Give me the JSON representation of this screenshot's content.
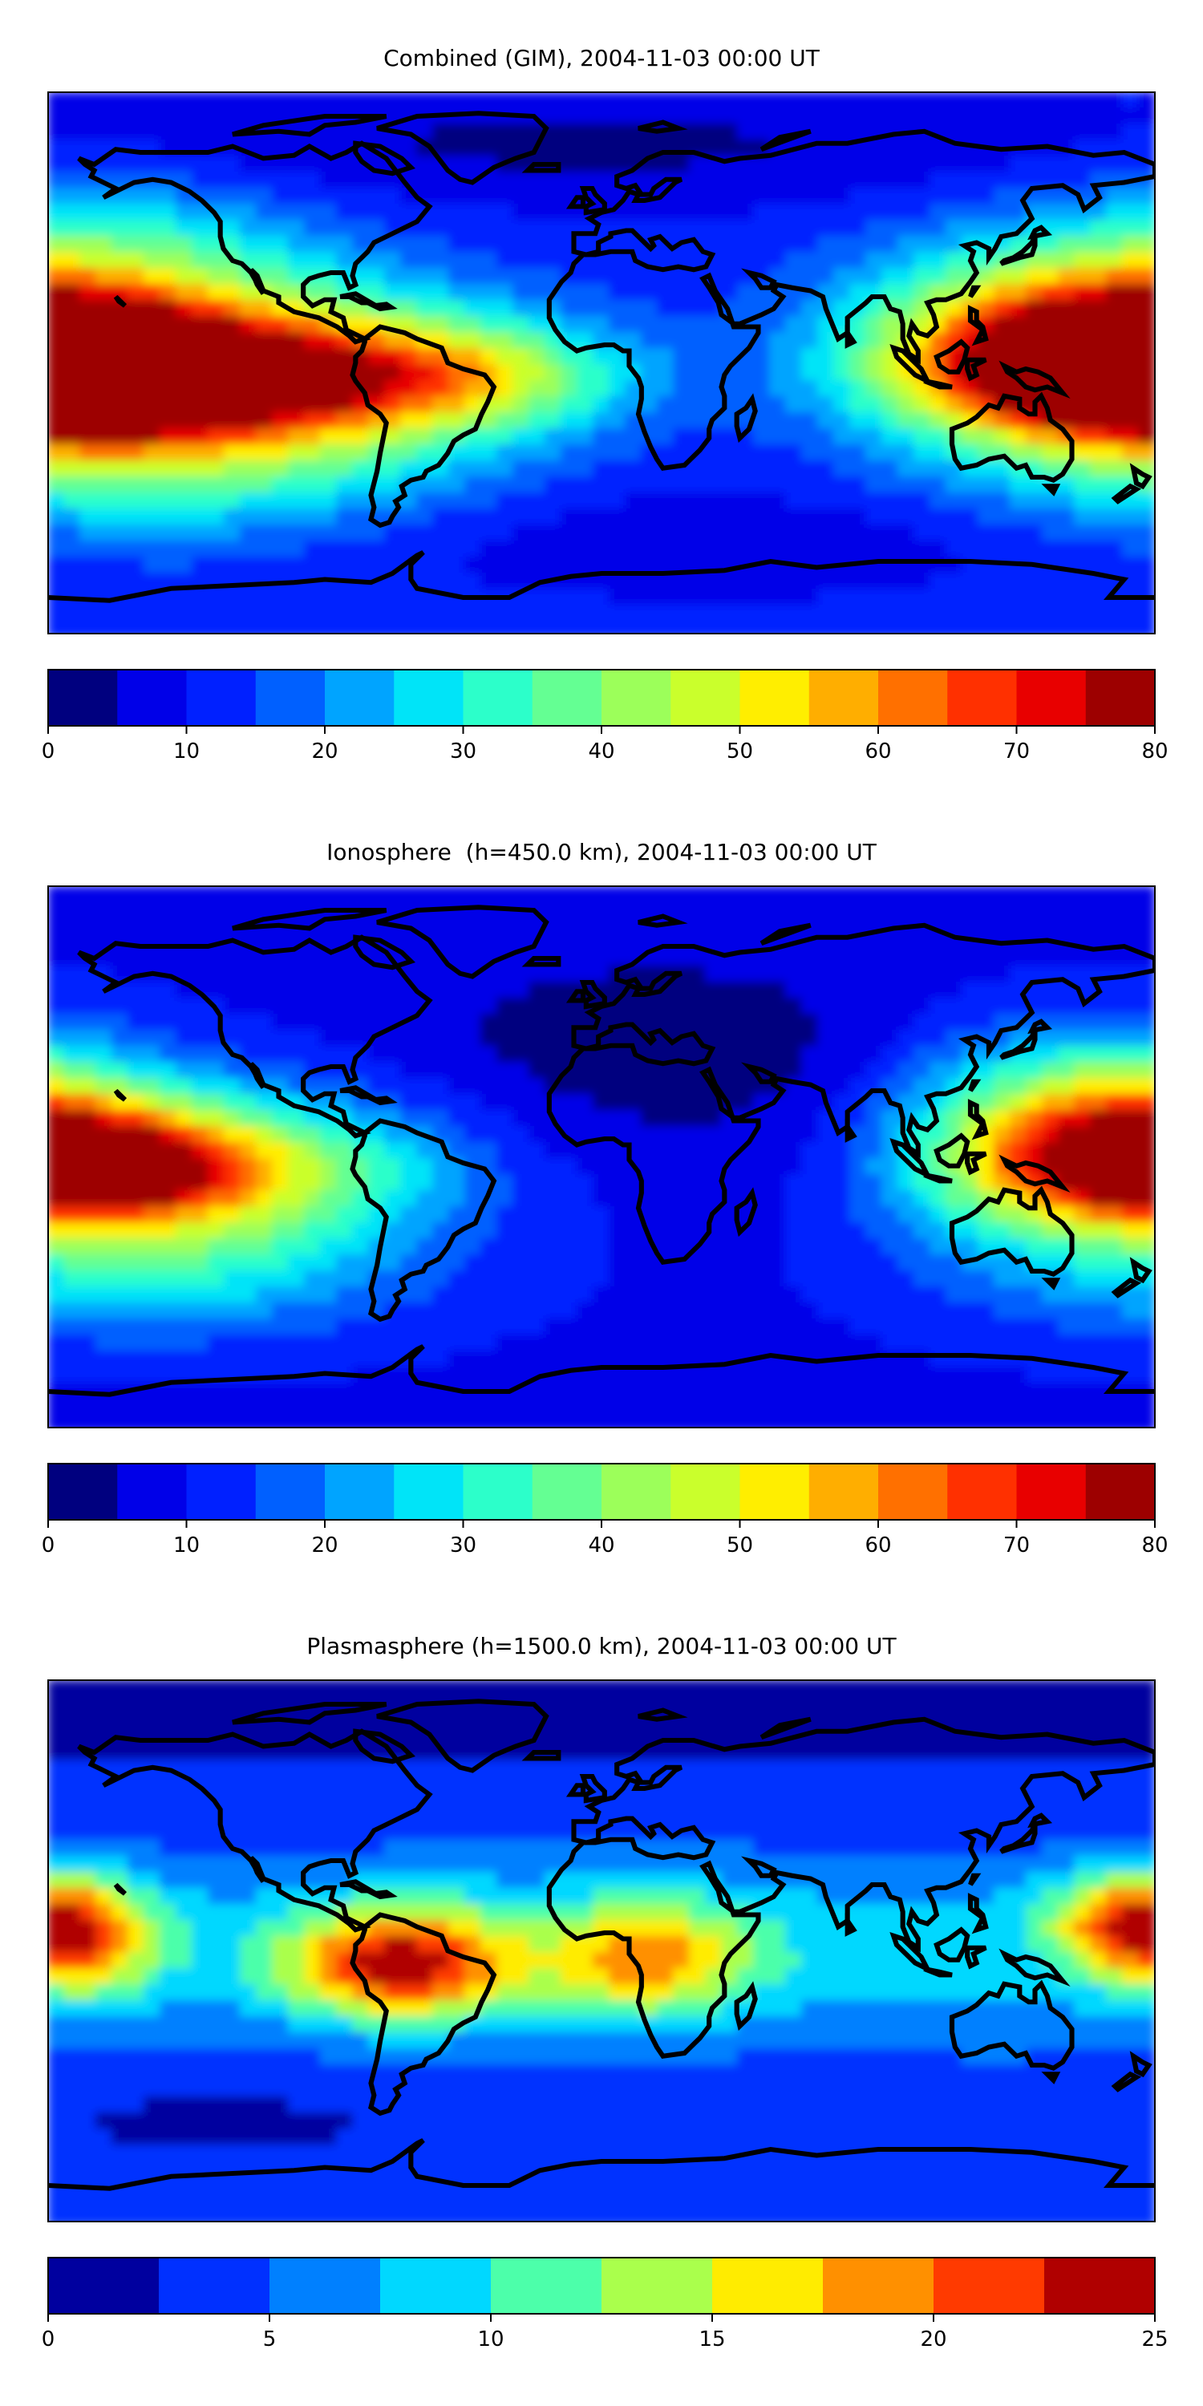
{
  "colormaps": {
    "jet_16": [
      "#00007f",
      "#0000e8",
      "#0020ff",
      "#0060ff",
      "#00a4ff",
      "#00e4f8",
      "#2cffca",
      "#64ff93",
      "#9cff5a",
      "#caff2c",
      "#ffee00",
      "#ffae00",
      "#ff7000",
      "#ff3000",
      "#e80000",
      "#9d0000"
    ],
    "jet_10": [
      "#00009f",
      "#0030ff",
      "#0080ff",
      "#00d8ff",
      "#4cffaa",
      "#aaff4c",
      "#ffec00",
      "#ff9000",
      "#ff3a00",
      "#b00000"
    ]
  },
  "chart_data": [
    {
      "type": "heatmap",
      "title": "Combined (GIM), 2004-11-03 00:00 UT",
      "colormap": "jet_16",
      "levels": [
        0,
        5,
        10,
        15,
        20,
        25,
        30,
        35,
        40,
        45,
        50,
        55,
        60,
        65,
        70,
        75,
        80
      ],
      "colorbar": {
        "range": [
          0,
          80
        ],
        "ticks": [
          "0",
          "10",
          "20",
          "30",
          "40",
          "50",
          "60",
          "70",
          "80"
        ],
        "tick_values": [
          0,
          10,
          20,
          30,
          40,
          50,
          60,
          70,
          80
        ]
      },
      "grid": false,
      "base_level": 11,
      "features": [
        {
          "region": "central Pacific equatorial crest",
          "level": 73,
          "lon": -165,
          "lat": -5,
          "spread_lon": 55,
          "spread_lat": 14
        },
        {
          "region": "eastern Pacific tongue",
          "level": 52,
          "lon": -115,
          "lat": -4,
          "spread_lon": 60,
          "spread_lat": 22
        },
        {
          "region": "western Pacific crest",
          "level": 62,
          "lon": 172,
          "lat": 5,
          "spread_lon": 38,
          "spread_lat": 20
        },
        {
          "region": "South America to Atlantic band",
          "level": 36,
          "lon": -45,
          "lat": -5,
          "spread_lon": 38,
          "spread_lat": 12
        },
        {
          "region": "southeast Asia band",
          "level": 32,
          "lon": 120,
          "lat": 8,
          "spread_lon": 40,
          "spread_lat": 22
        },
        {
          "region": "southern Pacific belt",
          "level": 26,
          "lon": -150,
          "lat": -40,
          "spread_lon": 70,
          "spread_lat": 18
        },
        {
          "region": "northern Pacific belt",
          "level": 26,
          "lon": -155,
          "lat": 38,
          "spread_lon": 45,
          "spread_lat": 18
        },
        {
          "region": "northern polar depletion",
          "level": 4,
          "lon": -10,
          "lat": 72,
          "spread_lon": 120,
          "spread_lat": 14
        },
        {
          "region": "southern high-latitude depletion",
          "level": 6,
          "lon": 40,
          "lat": -58,
          "spread_lon": 120,
          "spread_lat": 12
        }
      ]
    },
    {
      "type": "heatmap",
      "title": "Ionosphere  (h=450.0 km), 2004-11-03 00:00 UT",
      "colormap": "jet_16",
      "levels": [
        0,
        5,
        10,
        15,
        20,
        25,
        30,
        35,
        40,
        45,
        50,
        55,
        60,
        65,
        70,
        75,
        80
      ],
      "colorbar": {
        "range": [
          0,
          80
        ],
        "ticks": [
          "0",
          "10",
          "20",
          "30",
          "40",
          "50",
          "60",
          "70",
          "80"
        ],
        "tick_values": [
          0,
          10,
          20,
          30,
          40,
          50,
          60,
          70,
          80
        ]
      },
      "grid": false,
      "base_level": 9,
      "features": [
        {
          "region": "central Pacific equatorial crest",
          "level": 56,
          "lon": -165,
          "lat": -4,
          "spread_lon": 42,
          "spread_lat": 12
        },
        {
          "region": "eastern Pacific tongue",
          "level": 40,
          "lon": -130,
          "lat": -6,
          "spread_lon": 55,
          "spread_lat": 22
        },
        {
          "region": "western Pacific crest",
          "level": 50,
          "lon": 172,
          "lat": 8,
          "spread_lon": 30,
          "spread_lat": 20
        },
        {
          "region": "southeast Asia band",
          "level": 28,
          "lon": 125,
          "lat": 5,
          "spread_lon": 30,
          "spread_lat": 25
        },
        {
          "region": "South America depletion",
          "level": 12,
          "lon": -60,
          "lat": -5,
          "spread_lon": 18,
          "spread_lat": 10
        },
        {
          "region": "Africa-Eurasia depletion",
          "level": 2,
          "lon": 20,
          "lat": 35,
          "spread_lon": 70,
          "spread_lat": 25
        },
        {
          "region": "southern Pacific belt",
          "level": 22,
          "lon": -150,
          "lat": -40,
          "spread_lon": 60,
          "spread_lat": 16
        }
      ]
    },
    {
      "type": "heatmap",
      "title": "Plasmasphere (h=1500.0 km), 2004-11-03 00:00 UT",
      "colormap": "jet_10",
      "levels": [
        0,
        2.5,
        5,
        7.5,
        10,
        12.5,
        15,
        17.5,
        20,
        22.5,
        25
      ],
      "colorbar": {
        "range": [
          0,
          25
        ],
        "ticks": [
          "0",
          "5",
          "10",
          "15",
          "20",
          "25"
        ],
        "tick_values": [
          0,
          5,
          10,
          15,
          20,
          25
        ]
      },
      "grid": false,
      "base_level": 3,
      "features": [
        {
          "region": "South America maximum",
          "level": 19,
          "lon": -65,
          "lat": -5,
          "spread_lon": 25,
          "spread_lat": 13
        },
        {
          "region": "central Pacific maximum",
          "level": 17,
          "lon": -170,
          "lat": 5,
          "spread_lon": 18,
          "spread_lat": 14
        },
        {
          "region": "equatorial band",
          "level": 9.5,
          "lon": 0,
          "lat": 0,
          "spread_lon": 180,
          "spread_lat": 22
        },
        {
          "region": "Africa enhancement",
          "level": 13,
          "lon": 15,
          "lat": -3,
          "spread_lon": 22,
          "spread_lat": 14
        },
        {
          "region": "western Pacific enhancement",
          "level": 13,
          "lon": 168,
          "lat": 10,
          "spread_lon": 18,
          "spread_lat": 12
        },
        {
          "region": "Australia depletion",
          "level": 4,
          "lon": 135,
          "lat": -25,
          "spread_lon": 25,
          "spread_lat": 12
        },
        {
          "region": "southern Pacific depletion",
          "level": 2,
          "lon": -120,
          "lat": -55,
          "spread_lon": 50,
          "spread_lat": 10
        },
        {
          "region": "northern polar depletion",
          "level": 1,
          "lon": 0,
          "lat": 78,
          "spread_lon": 180,
          "spread_lat": 10
        }
      ]
    }
  ]
}
